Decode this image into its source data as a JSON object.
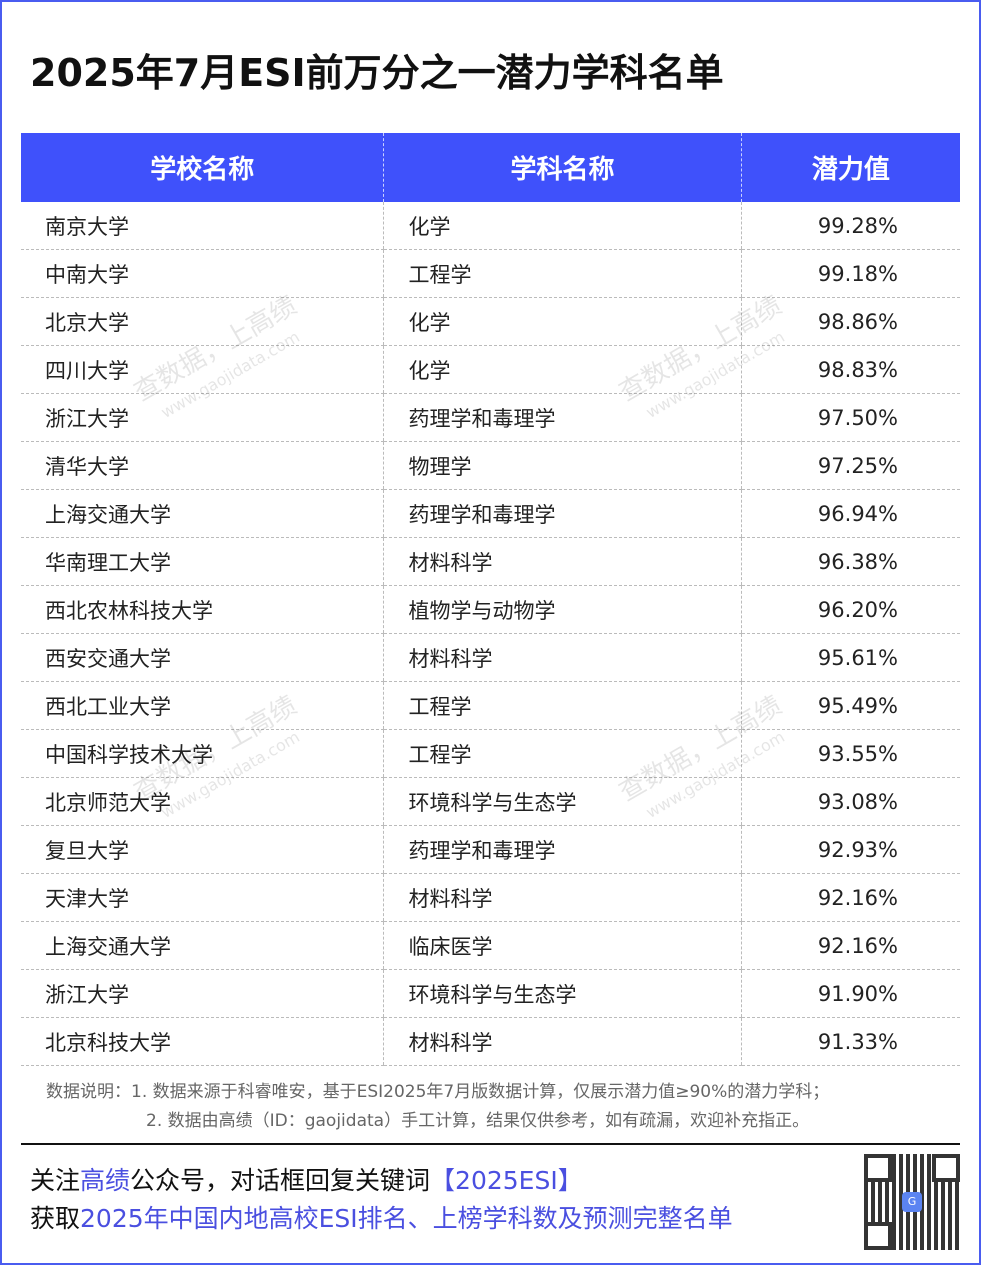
{
  "title": "2025年7月ESI前万分之一潜力学科名单",
  "table": {
    "headers": [
      "学校名称",
      "学科名称",
      "潜力值"
    ],
    "rows": [
      [
        "南京大学",
        "化学",
        "99.28%"
      ],
      [
        "中南大学",
        "工程学",
        "99.18%"
      ],
      [
        "北京大学",
        "化学",
        "98.86%"
      ],
      [
        "四川大学",
        "化学",
        "98.83%"
      ],
      [
        "浙江大学",
        "药理学和毒理学",
        "97.50%"
      ],
      [
        "清华大学",
        "物理学",
        "97.25%"
      ],
      [
        "上海交通大学",
        "药理学和毒理学",
        "96.94%"
      ],
      [
        "华南理工大学",
        "材料科学",
        "96.38%"
      ],
      [
        "西北农林科技大学",
        "植物学与动物学",
        "96.20%"
      ],
      [
        "西安交通大学",
        "材料科学",
        "95.61%"
      ],
      [
        "西北工业大学",
        "工程学",
        "95.49%"
      ],
      [
        "中国科学技术大学",
        "工程学",
        "93.55%"
      ],
      [
        "北京师范大学",
        "环境科学与生态学",
        "93.08%"
      ],
      [
        "复旦大学",
        "药理学和毒理学",
        "92.93%"
      ],
      [
        "天津大学",
        "材料科学",
        "92.16%"
      ],
      [
        "上海交通大学",
        "临床医学",
        "92.16%"
      ],
      [
        "浙江大学",
        "环境科学与生态学",
        "91.90%"
      ],
      [
        "北京科技大学",
        "材料科学",
        "91.33%"
      ]
    ]
  },
  "notes": [
    "数据说明：1. 数据来源于科睿唯安，基于ESI2025年7月版数据计算，仅展示潜力值≥90%的潜力学科；",
    "2. 数据由高绩（ID：gaojidata）手工计算，结果仅供参考，如有疏漏，欢迎补充指正。"
  ],
  "promo": {
    "l1a": "关注",
    "l1b": "高绩",
    "l1c": "公众号，对话框回复关键词",
    "l1d": "【2025ESI】",
    "l2a": "获取",
    "l2b": "2025年中国内地高校ESI排名、上榜学科数及预测完整名单"
  },
  "watermark": {
    "text": "查数据，上高绩",
    "url": "www.gaojidata.com"
  },
  "colors": {
    "header": "#3f51fb",
    "highlight": "#4a4fe0"
  }
}
